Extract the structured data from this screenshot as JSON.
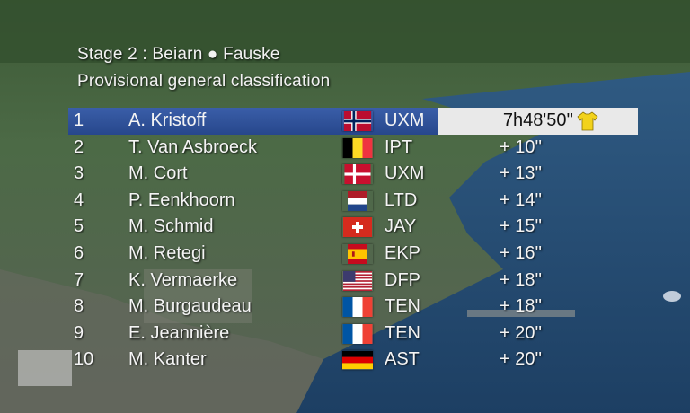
{
  "header": {
    "stage_line": "Stage 2 : Beiarn ● Fauske",
    "classification_line": "Provisional general classification"
  },
  "colors": {
    "leader_band": "#2f4f96",
    "leader_time_box": "#e9e9e9",
    "yellow_jersey": "#f2d21b",
    "text": "#f4f4f4"
  },
  "standings": [
    {
      "pos": "1",
      "name": "A. Kristoff",
      "flag": "norway-flag-icon",
      "team": "UXM",
      "time": "7h48'50''",
      "leader": true,
      "jersey": "yellow-jersey-icon"
    },
    {
      "pos": "2",
      "name": "T. Van Asbroeck",
      "flag": "belgium-flag-icon",
      "team": "IPT",
      "time": "+ 10''"
    },
    {
      "pos": "3",
      "name": "M. Cort",
      "flag": "denmark-flag-icon",
      "team": "UXM",
      "time": "+ 13''"
    },
    {
      "pos": "4",
      "name": "P. Eenkhoorn",
      "flag": "netherlands-flag-icon",
      "team": "LTD",
      "time": "+ 14''"
    },
    {
      "pos": "5",
      "name": "M. Schmid",
      "flag": "switzerland-flag-icon",
      "team": "JAY",
      "time": "+ 15''"
    },
    {
      "pos": "6",
      "name": "M. Retegi",
      "flag": "spain-flag-icon",
      "team": "EKP",
      "time": "+ 16''"
    },
    {
      "pos": "7",
      "name": "K. Vermaerke",
      "flag": "usa-flag-icon",
      "team": "DFP",
      "time": "+ 18''"
    },
    {
      "pos": "8",
      "name": "M. Burgaudeau",
      "flag": "france-flag-icon",
      "team": "TEN",
      "time": "+ 18''"
    },
    {
      "pos": "9",
      "name": "E. Jeannière",
      "flag": "france-flag-icon",
      "team": "TEN",
      "time": "+ 20''"
    },
    {
      "pos": "10",
      "name": "M. Kanter",
      "flag": "germany-flag-icon",
      "team": "AST",
      "time": "+ 20''"
    }
  ]
}
